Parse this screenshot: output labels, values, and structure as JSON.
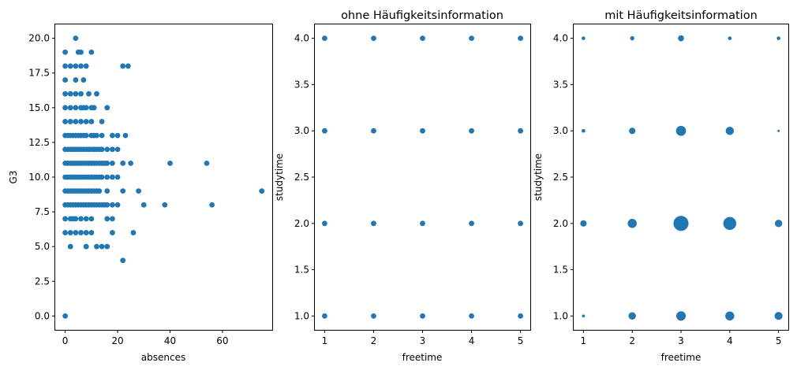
{
  "chart_data": [
    {
      "type": "scatter",
      "title": "",
      "xlabel": "absences",
      "ylabel": "G3",
      "xlim": [
        -3.8,
        79
      ],
      "ylim": [
        -1,
        21
      ],
      "xticks": [
        0,
        20,
        40,
        60
      ],
      "yticks": [
        0,
        2.5,
        5,
        7.5,
        10,
        12.5,
        15,
        17.5,
        20
      ],
      "xtick_labels": [
        "0",
        "20",
        "40",
        "60"
      ],
      "ytick_labels": [
        "0.0",
        "2.5",
        "5.0",
        "7.5",
        "10.0",
        "12.5",
        "15.0",
        "17.5",
        "20.0"
      ],
      "color": "#1f77b4",
      "points": [
        [
          0,
          0
        ],
        [
          4,
          20
        ],
        [
          0,
          19
        ],
        [
          5,
          19
        ],
        [
          6,
          19
        ],
        [
          10,
          19
        ],
        [
          0,
          18
        ],
        [
          2,
          18
        ],
        [
          4,
          18
        ],
        [
          6,
          18
        ],
        [
          8,
          18
        ],
        [
          22,
          18
        ],
        [
          24,
          18
        ],
        [
          0,
          17
        ],
        [
          4,
          17
        ],
        [
          7,
          17
        ],
        [
          0,
          16
        ],
        [
          2,
          16
        ],
        [
          4,
          16
        ],
        [
          6,
          16
        ],
        [
          9,
          16
        ],
        [
          12,
          16
        ],
        [
          0,
          15
        ],
        [
          2,
          15
        ],
        [
          4,
          15
        ],
        [
          6,
          15
        ],
        [
          7,
          15
        ],
        [
          8,
          15
        ],
        [
          10,
          15
        ],
        [
          11,
          15
        ],
        [
          16,
          15
        ],
        [
          0,
          14
        ],
        [
          2,
          14
        ],
        [
          4,
          14
        ],
        [
          6,
          14
        ],
        [
          8,
          14
        ],
        [
          10,
          14
        ],
        [
          14,
          14
        ],
        [
          0,
          13
        ],
        [
          1,
          13
        ],
        [
          2,
          13
        ],
        [
          3,
          13
        ],
        [
          4,
          13
        ],
        [
          5,
          13
        ],
        [
          6,
          13
        ],
        [
          7,
          13
        ],
        [
          8,
          13
        ],
        [
          10,
          13
        ],
        [
          11,
          13
        ],
        [
          12,
          13
        ],
        [
          14,
          13
        ],
        [
          18,
          13
        ],
        [
          20,
          13
        ],
        [
          23,
          13
        ],
        [
          0,
          12
        ],
        [
          1,
          12
        ],
        [
          2,
          12
        ],
        [
          3,
          12
        ],
        [
          4,
          12
        ],
        [
          5,
          12
        ],
        [
          6,
          12
        ],
        [
          7,
          12
        ],
        [
          8,
          12
        ],
        [
          9,
          12
        ],
        [
          10,
          12
        ],
        [
          11,
          12
        ],
        [
          12,
          12
        ],
        [
          13,
          12
        ],
        [
          14,
          12
        ],
        [
          16,
          12
        ],
        [
          18,
          12
        ],
        [
          20,
          12
        ],
        [
          0,
          11
        ],
        [
          1,
          11
        ],
        [
          2,
          11
        ],
        [
          3,
          11
        ],
        [
          4,
          11
        ],
        [
          5,
          11
        ],
        [
          6,
          11
        ],
        [
          7,
          11
        ],
        [
          8,
          11
        ],
        [
          9,
          11
        ],
        [
          10,
          11
        ],
        [
          11,
          11
        ],
        [
          12,
          11
        ],
        [
          13,
          11
        ],
        [
          14,
          11
        ],
        [
          15,
          11
        ],
        [
          16,
          11
        ],
        [
          18,
          11
        ],
        [
          22,
          11
        ],
        [
          25,
          11
        ],
        [
          40,
          11
        ],
        [
          54,
          11
        ],
        [
          0,
          10
        ],
        [
          1,
          10
        ],
        [
          2,
          10
        ],
        [
          3,
          10
        ],
        [
          4,
          10
        ],
        [
          5,
          10
        ],
        [
          6,
          10
        ],
        [
          7,
          10
        ],
        [
          8,
          10
        ],
        [
          9,
          10
        ],
        [
          10,
          10
        ],
        [
          11,
          10
        ],
        [
          12,
          10
        ],
        [
          13,
          10
        ],
        [
          14,
          10
        ],
        [
          16,
          10
        ],
        [
          18,
          10
        ],
        [
          20,
          10
        ],
        [
          0,
          9
        ],
        [
          1,
          9
        ],
        [
          2,
          9
        ],
        [
          3,
          9
        ],
        [
          4,
          9
        ],
        [
          5,
          9
        ],
        [
          6,
          9
        ],
        [
          7,
          9
        ],
        [
          8,
          9
        ],
        [
          9,
          9
        ],
        [
          10,
          9
        ],
        [
          11,
          9
        ],
        [
          12,
          9
        ],
        [
          13,
          9
        ],
        [
          16,
          9
        ],
        [
          22,
          9
        ],
        [
          28,
          9
        ],
        [
          75,
          9
        ],
        [
          0,
          8
        ],
        [
          1,
          8
        ],
        [
          2,
          8
        ],
        [
          3,
          8
        ],
        [
          4,
          8
        ],
        [
          5,
          8
        ],
        [
          6,
          8
        ],
        [
          7,
          8
        ],
        [
          8,
          8
        ],
        [
          9,
          8
        ],
        [
          10,
          8
        ],
        [
          11,
          8
        ],
        [
          12,
          8
        ],
        [
          13,
          8
        ],
        [
          14,
          8
        ],
        [
          15,
          8
        ],
        [
          16,
          8
        ],
        [
          18,
          8
        ],
        [
          20,
          8
        ],
        [
          30,
          8
        ],
        [
          38,
          8
        ],
        [
          56,
          8
        ],
        [
          0,
          7
        ],
        [
          2,
          7
        ],
        [
          3,
          7
        ],
        [
          4,
          7
        ],
        [
          6,
          7
        ],
        [
          8,
          7
        ],
        [
          10,
          7
        ],
        [
          16,
          7
        ],
        [
          18,
          7
        ],
        [
          0,
          6
        ],
        [
          2,
          6
        ],
        [
          4,
          6
        ],
        [
          6,
          6
        ],
        [
          8,
          6
        ],
        [
          10,
          6
        ],
        [
          18,
          6
        ],
        [
          26,
          6
        ],
        [
          2,
          5
        ],
        [
          8,
          5
        ],
        [
          12,
          5
        ],
        [
          14,
          5
        ],
        [
          16,
          5
        ],
        [
          22,
          4
        ]
      ]
    },
    {
      "type": "scatter",
      "title": "ohne Häufigkeitsinformation",
      "xlabel": "freetime",
      "ylabel": "studytime",
      "xlim": [
        0.8,
        5.2
      ],
      "ylim": [
        0.85,
        4.15
      ],
      "xticks": [
        1,
        2,
        3,
        4,
        5
      ],
      "yticks": [
        1,
        1.5,
        2,
        2.5,
        3,
        3.5,
        4
      ],
      "xtick_labels": [
        "1",
        "2",
        "3",
        "4",
        "5"
      ],
      "ytick_labels": [
        "1.0",
        "1.5",
        "2.0",
        "2.5",
        "3.0",
        "3.5",
        "4.0"
      ],
      "color": "#1f77b4",
      "points": [
        [
          1,
          1
        ],
        [
          2,
          1
        ],
        [
          3,
          1
        ],
        [
          4,
          1
        ],
        [
          5,
          1
        ],
        [
          1,
          2
        ],
        [
          2,
          2
        ],
        [
          3,
          2
        ],
        [
          4,
          2
        ],
        [
          5,
          2
        ],
        [
          1,
          3
        ],
        [
          2,
          3
        ],
        [
          3,
          3
        ],
        [
          4,
          3
        ],
        [
          5,
          3
        ],
        [
          1,
          4
        ],
        [
          2,
          4
        ],
        [
          3,
          4
        ],
        [
          4,
          4
        ],
        [
          5,
          4
        ]
      ]
    },
    {
      "type": "scatter",
      "title": "mit Häufigkeitsinformation",
      "xlabel": "freetime",
      "ylabel": "studytime",
      "xlim": [
        0.8,
        5.2
      ],
      "ylim": [
        0.85,
        4.15
      ],
      "xticks": [
        1,
        2,
        3,
        4,
        5
      ],
      "yticks": [
        1,
        1.5,
        2,
        2.5,
        3,
        3.5,
        4
      ],
      "xtick_labels": [
        "1",
        "2",
        "3",
        "4",
        "5"
      ],
      "ytick_labels": [
        "1.0",
        "1.5",
        "2.0",
        "2.5",
        "3.0",
        "3.5",
        "4.0"
      ],
      "color": "#1f77b4",
      "size_encodes": "count",
      "points": [
        {
          "x": 1,
          "y": 1,
          "count": 2
        },
        {
          "x": 2,
          "y": 1,
          "count": 12
        },
        {
          "x": 3,
          "y": 1,
          "count": 20
        },
        {
          "x": 4,
          "y": 1,
          "count": 18
        },
        {
          "x": 5,
          "y": 1,
          "count": 14
        },
        {
          "x": 1,
          "y": 2,
          "count": 9
        },
        {
          "x": 2,
          "y": 2,
          "count": 18
        },
        {
          "x": 3,
          "y": 2,
          "count": 50
        },
        {
          "x": 4,
          "y": 2,
          "count": 37
        },
        {
          "x": 5,
          "y": 2,
          "count": 12
        },
        {
          "x": 1,
          "y": 3,
          "count": 3
        },
        {
          "x": 2,
          "y": 3,
          "count": 9
        },
        {
          "x": 3,
          "y": 3,
          "count": 22
        },
        {
          "x": 4,
          "y": 3,
          "count": 15
        },
        {
          "x": 5,
          "y": 3,
          "count": 1
        },
        {
          "x": 1,
          "y": 4,
          "count": 3
        },
        {
          "x": 2,
          "y": 4,
          "count": 4
        },
        {
          "x": 3,
          "y": 4,
          "count": 8
        },
        {
          "x": 4,
          "y": 4,
          "count": 3
        },
        {
          "x": 5,
          "y": 4,
          "count": 3
        }
      ]
    }
  ]
}
